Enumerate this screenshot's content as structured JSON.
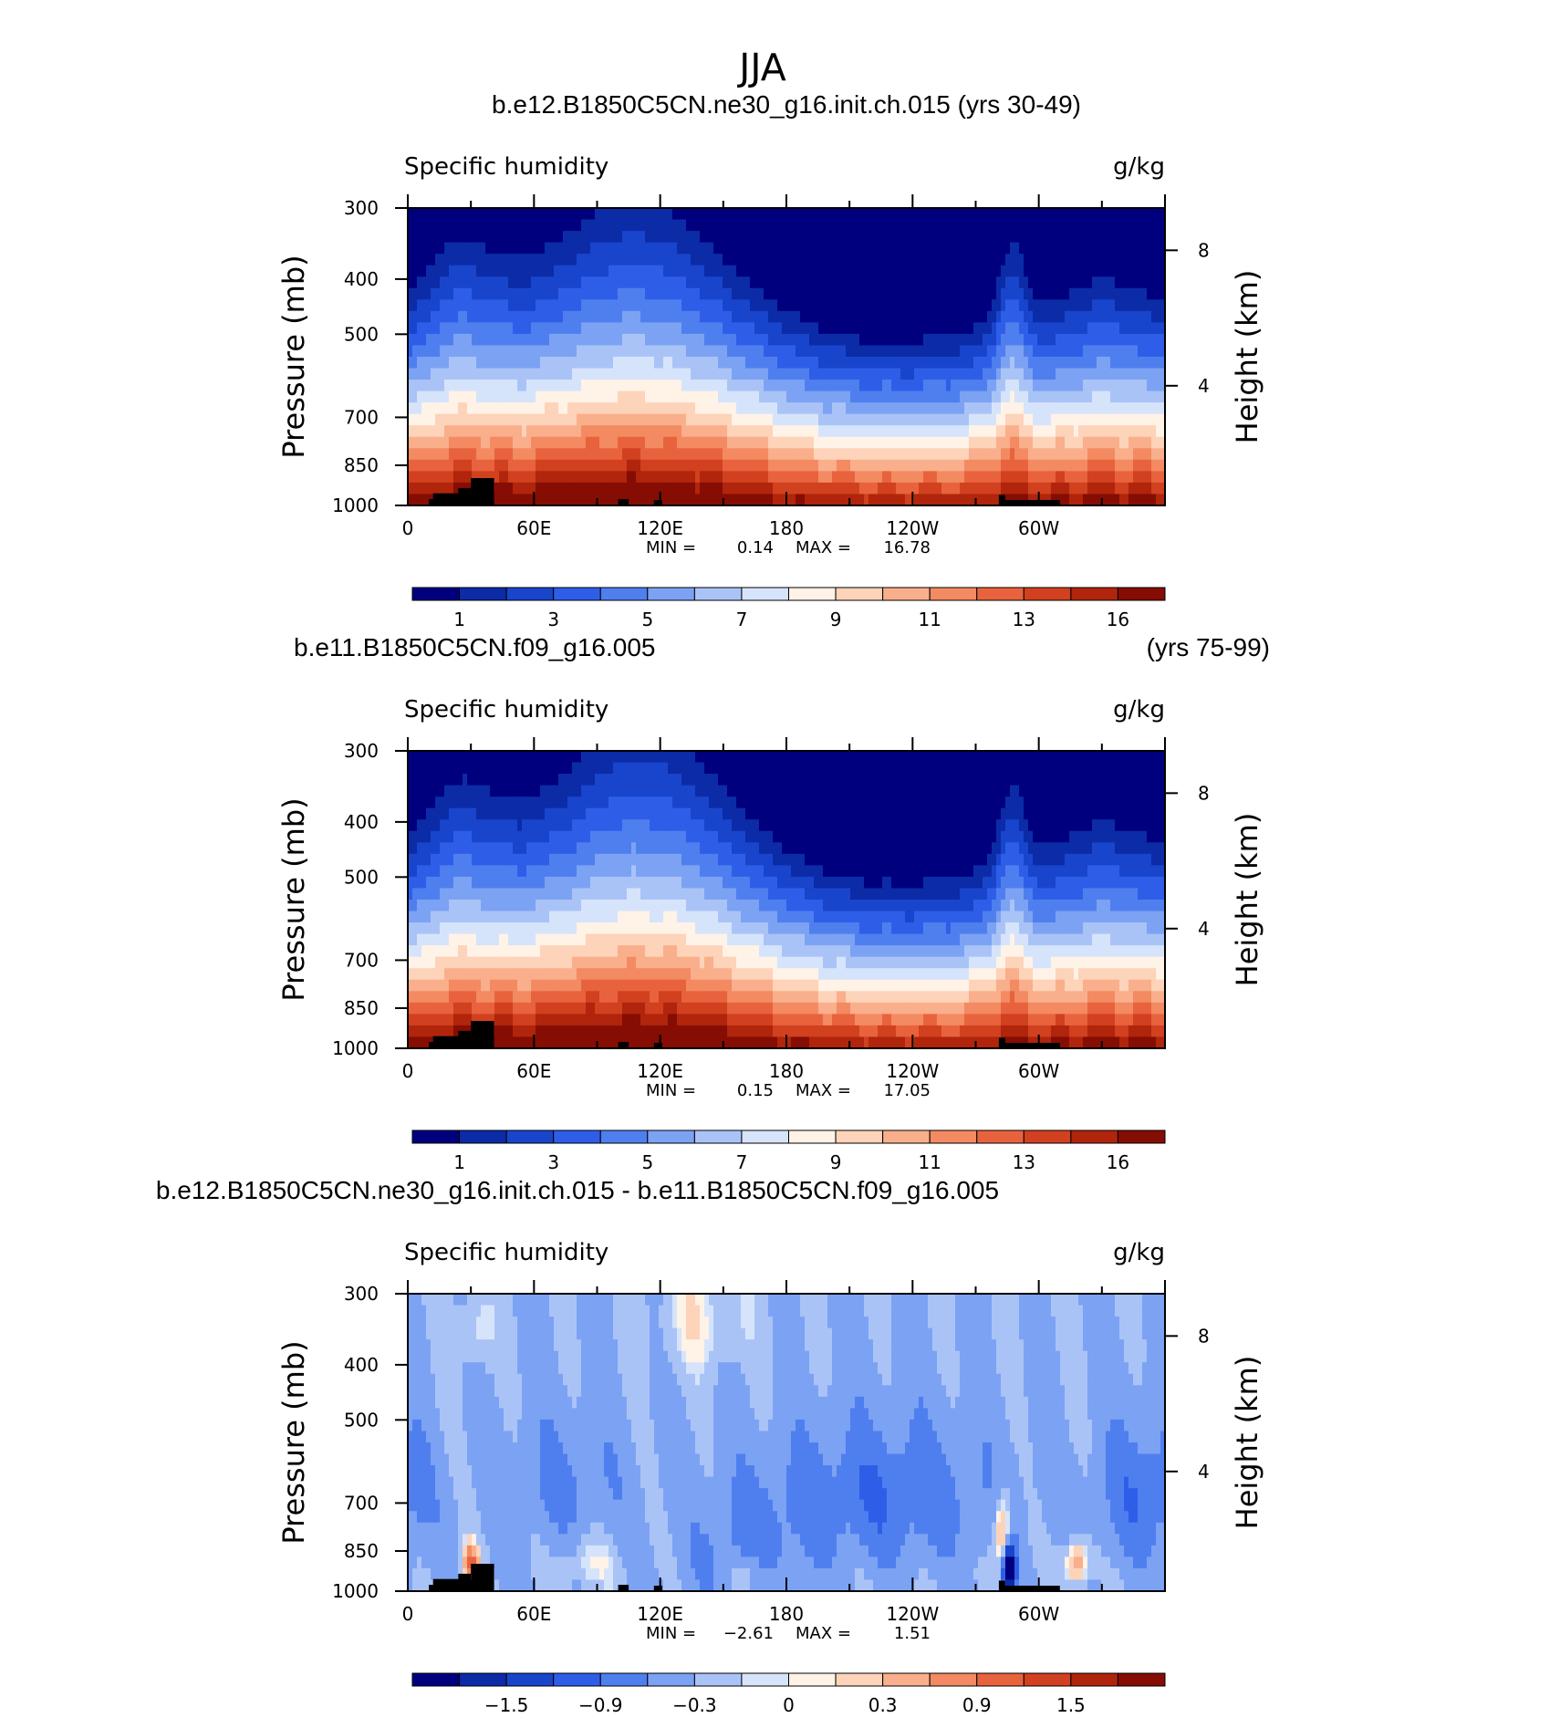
{
  "figure": {
    "title": "JJA"
  },
  "chart_data": [
    {
      "type": "heatmap",
      "title": "b.e12.B1850C5CN.ne30_g16.init.ch.015 (yrs 30-49)",
      "title_right": "",
      "subtitle_left": "Specific humidity",
      "subtitle_right": "g/kg",
      "ylabel": "Pressure (mb)",
      "ylabel_right": "Height (km)",
      "xticks": [
        "0",
        "60E",
        "120E",
        "180",
        "120W",
        "60W"
      ],
      "xtick_lon": [
        0,
        60,
        120,
        180,
        240,
        300
      ],
      "xlim": [
        0,
        360
      ],
      "yticks": [
        "300",
        "400",
        "500",
        "700",
        "850",
        "1000"
      ],
      "ytick_p": [
        300,
        400,
        500,
        700,
        850,
        1000
      ],
      "ylim": [
        1000,
        300
      ],
      "yscale": "log",
      "right_ticks": [
        "8",
        "4"
      ],
      "right_tick_p": [
        356,
        616
      ],
      "min_label": "MIN =",
      "min_value": "0.14",
      "max_label": "MAX =",
      "max_value": "16.78",
      "colorbar": {
        "labels": [
          "1",
          "3",
          "5",
          "7",
          "9",
          "11",
          "13",
          "16"
        ],
        "colors": [
          "#00007f",
          "#0c2ba7",
          "#1845cc",
          "#2e5ee8",
          "#4f7fef",
          "#7ca2f3",
          "#aac3f7",
          "#d6e4fb",
          "#fff2e6",
          "#fdd3b9",
          "#f9af8b",
          "#f38a61",
          "#e8633d",
          "#d1401f",
          "#b0250b",
          "#850d03"
        ]
      },
      "field": "mean1"
    },
    {
      "type": "heatmap",
      "title": "b.e11.B1850C5CN.f09_g16.005",
      "title_right": "(yrs 75-99)",
      "subtitle_left": "Specific humidity",
      "subtitle_right": "g/kg",
      "ylabel": "Pressure (mb)",
      "ylabel_right": "Height (km)",
      "xticks": [
        "0",
        "60E",
        "120E",
        "180",
        "120W",
        "60W"
      ],
      "xtick_lon": [
        0,
        60,
        120,
        180,
        240,
        300
      ],
      "xlim": [
        0,
        360
      ],
      "yticks": [
        "300",
        "400",
        "500",
        "700",
        "850",
        "1000"
      ],
      "ytick_p": [
        300,
        400,
        500,
        700,
        850,
        1000
      ],
      "ylim": [
        1000,
        300
      ],
      "yscale": "log",
      "right_ticks": [
        "8",
        "4"
      ],
      "right_tick_p": [
        356,
        616
      ],
      "min_label": "MIN =",
      "min_value": "0.15",
      "max_label": "MAX =",
      "max_value": "17.05",
      "colorbar": {
        "labels": [
          "1",
          "3",
          "5",
          "7",
          "9",
          "11",
          "13",
          "16"
        ],
        "colors": [
          "#00007f",
          "#0c2ba7",
          "#1845cc",
          "#2e5ee8",
          "#4f7fef",
          "#7ca2f3",
          "#aac3f7",
          "#d6e4fb",
          "#fff2e6",
          "#fdd3b9",
          "#f9af8b",
          "#f38a61",
          "#e8633d",
          "#d1401f",
          "#b0250b",
          "#850d03"
        ]
      },
      "field": "mean2"
    },
    {
      "type": "heatmap",
      "title": "b.e12.B1850C5CN.ne30_g16.init.ch.015 - b.e11.B1850C5CN.f09_g16.005",
      "title_right": "",
      "subtitle_left": "Specific humidity",
      "subtitle_right": "g/kg",
      "ylabel": "Pressure (mb)",
      "ylabel_right": "Height (km)",
      "xticks": [
        "0",
        "60E",
        "120E",
        "180",
        "120W",
        "60W"
      ],
      "xtick_lon": [
        0,
        60,
        120,
        180,
        240,
        300
      ],
      "xlim": [
        0,
        360
      ],
      "yticks": [
        "300",
        "400",
        "500",
        "700",
        "850",
        "1000"
      ],
      "ytick_p": [
        300,
        400,
        500,
        700,
        850,
        1000
      ],
      "ylim": [
        1000,
        300
      ],
      "yscale": "log",
      "right_ticks": [
        "8",
        "4"
      ],
      "right_tick_p": [
        356,
        616
      ],
      "min_label": "MIN =",
      "min_value": "−2.61",
      "max_label": "MAX =",
      "max_value": "1.51",
      "colorbar": {
        "labels": [
          "−1.5",
          "−0.9",
          "−0.3",
          "0",
          "0.3",
          "0.9",
          "1.5"
        ],
        "colors": [
          "#00007f",
          "#0c2ba7",
          "#1845cc",
          "#2e5ee8",
          "#4f7fef",
          "#7ca2f3",
          "#aac3f7",
          "#d6e4fb",
          "#fff2e6",
          "#fdd3b9",
          "#f9af8b",
          "#f38a61",
          "#e8633d",
          "#d1401f",
          "#b0250b",
          "#850d03"
        ]
      },
      "field": "diff"
    }
  ]
}
